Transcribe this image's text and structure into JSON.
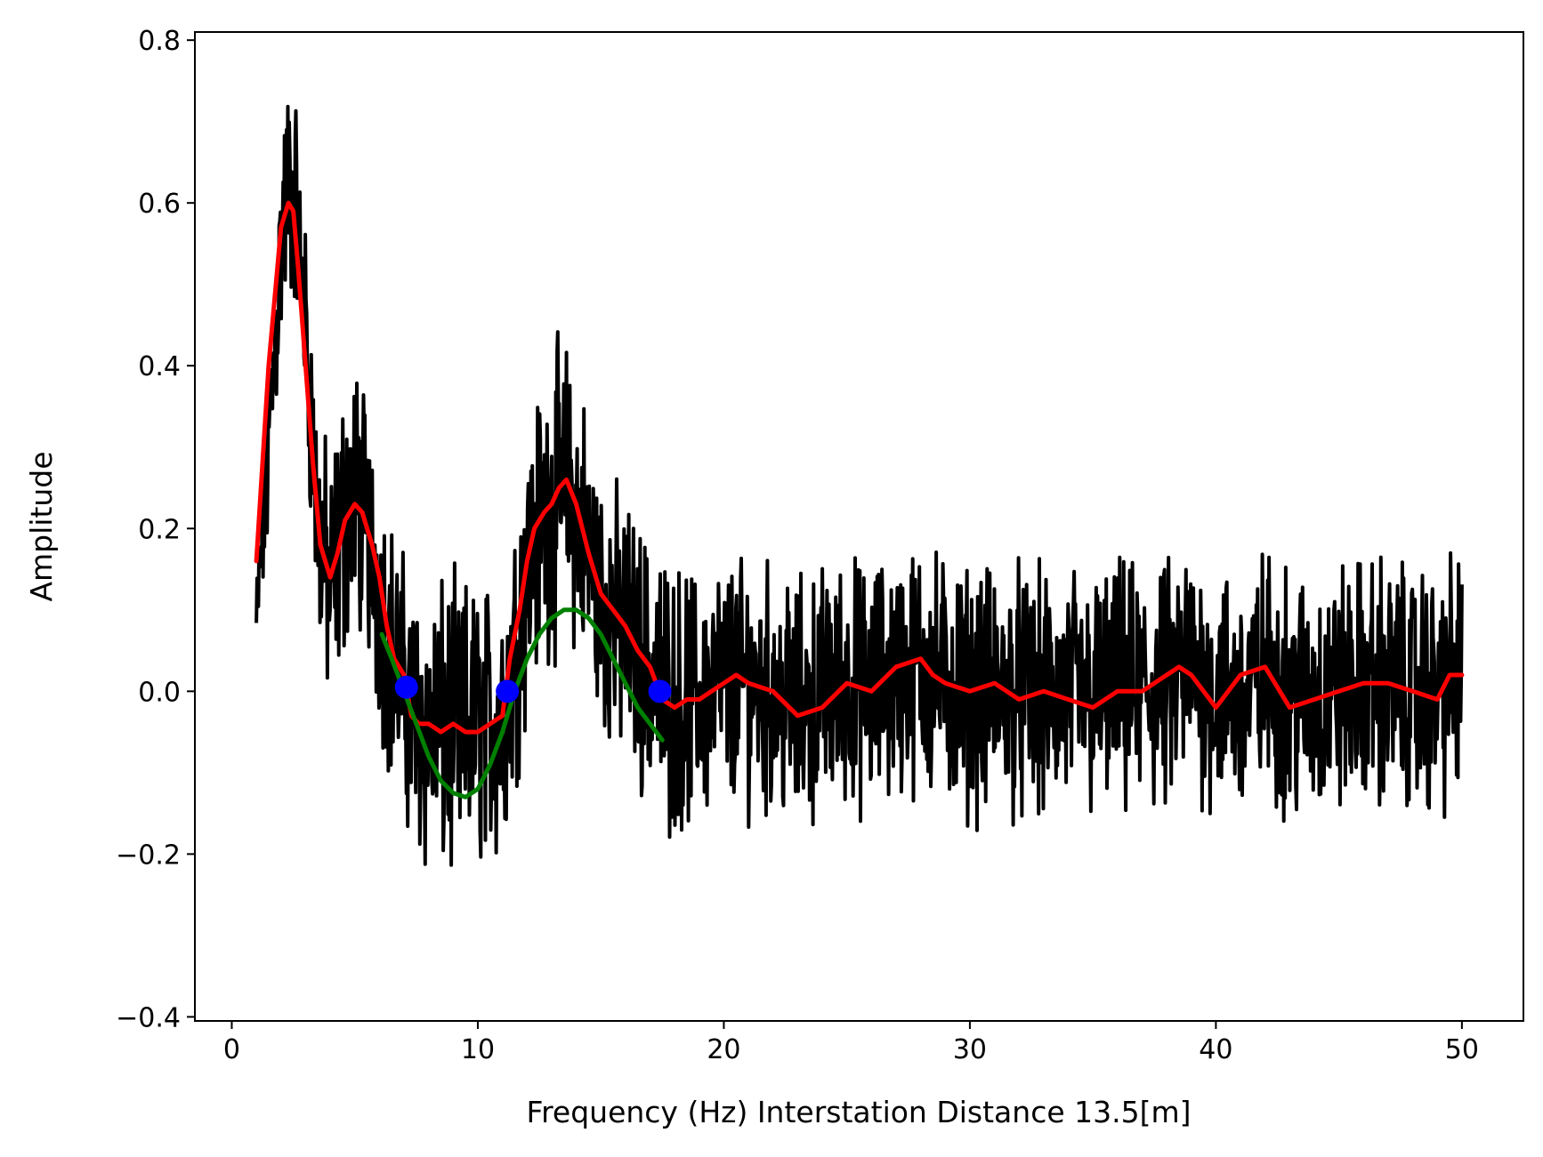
{
  "chart_data": {
    "type": "line",
    "title": "",
    "xlabel": "Frequency (Hz)  Interstation Distance 13.5[m]",
    "ylabel": "Amplitude",
    "xlim": [
      -1.5,
      52.5
    ],
    "ylim": [
      -0.405,
      0.81
    ],
    "x_ticks": [
      0,
      10,
      20,
      30,
      40,
      50
    ],
    "x_tick_labels": [
      "0",
      "10",
      "20",
      "30",
      "40",
      "50"
    ],
    "y_ticks": [
      -0.4,
      -0.2,
      0.0,
      0.2,
      0.4,
      0.6,
      0.8
    ],
    "y_tick_labels": [
      "−0.4",
      "−0.2",
      "0.0",
      "0.2",
      "0.4",
      "0.6",
      "0.8"
    ],
    "grid": false,
    "legend": "none",
    "series": [
      {
        "role": "raw-spectrum",
        "color": "#000000",
        "style": "noisy",
        "x": [
          1.0,
          1.5,
          2.0,
          2.3,
          2.6,
          3.0,
          3.5,
          4.0,
          4.5,
          5.0,
          5.5,
          6.0,
          6.5,
          7.0,
          7.5,
          8.0,
          8.5,
          9.0,
          9.5,
          10.0,
          10.5,
          11.0,
          11.5,
          12.0,
          12.5,
          13.0,
          13.5,
          14.0,
          14.5,
          15.0,
          15.5,
          16.0,
          16.5,
          17.0,
          17.5,
          18.0,
          19.0,
          20.0,
          21.0,
          22.0,
          23.0,
          24.0,
          25.0,
          26.0,
          27.0,
          28.0,
          29.0,
          30.0,
          31.0,
          32.0,
          33.0,
          34.0,
          35.0,
          36.0,
          37.0,
          38.0,
          39.0,
          40.0,
          41.0,
          42.0,
          43.0,
          44.0,
          45.0,
          46.0,
          47.0,
          48.0,
          49.0,
          50.0
        ],
        "trend": [
          0.08,
          0.3,
          0.55,
          0.62,
          0.6,
          0.45,
          0.2,
          0.12,
          0.2,
          0.25,
          0.2,
          0.12,
          0.05,
          0.0,
          -0.04,
          -0.05,
          -0.05,
          -0.05,
          -0.05,
          -0.04,
          -0.04,
          -0.03,
          0.05,
          0.15,
          0.2,
          0.23,
          0.25,
          0.22,
          0.17,
          0.12,
          0.09,
          0.07,
          0.05,
          0.02,
          0.0,
          -0.01,
          -0.01,
          0.01,
          0.01,
          0.0,
          -0.02,
          0.0,
          0.01,
          0.0,
          0.02,
          0.03,
          0.01,
          0.0,
          0.0,
          0.0,
          -0.01,
          0.0,
          -0.01,
          0.0,
          0.0,
          0.0,
          0.03,
          0.0,
          -0.01,
          0.02,
          0.0,
          -0.01,
          0.0,
          0.01,
          0.01,
          0.0,
          0.0,
          0.02
        ],
        "spread": [
          0.07,
          0.12,
          0.14,
          0.14,
          0.13,
          0.12,
          0.15,
          0.16,
          0.17,
          0.16,
          0.15,
          0.16,
          0.16,
          0.16,
          0.17,
          0.17,
          0.18,
          0.18,
          0.18,
          0.17,
          0.17,
          0.17,
          0.17,
          0.17,
          0.17,
          0.18,
          0.18,
          0.17,
          0.17,
          0.16,
          0.16,
          0.16,
          0.16,
          0.16,
          0.16,
          0.16,
          0.15,
          0.15,
          0.15,
          0.15,
          0.15,
          0.15,
          0.15,
          0.15,
          0.15,
          0.15,
          0.15,
          0.15,
          0.15,
          0.15,
          0.15,
          0.15,
          0.15,
          0.15,
          0.15,
          0.15,
          0.15,
          0.15,
          0.15,
          0.15,
          0.15,
          0.15,
          0.15,
          0.15,
          0.15,
          0.15,
          0.15,
          0.15
        ]
      },
      {
        "role": "smoothed-spectrum",
        "color": "#ff0000",
        "x": [
          1.0,
          1.5,
          2.0,
          2.3,
          2.5,
          2.7,
          3.0,
          3.3,
          3.6,
          4.0,
          4.3,
          4.6,
          5.0,
          5.3,
          5.7,
          6.0,
          6.3,
          6.6,
          7.0,
          7.3,
          7.6,
          8.0,
          8.5,
          9.0,
          9.5,
          10.0,
          10.5,
          11.0,
          11.3,
          11.7,
          12.0,
          12.3,
          12.7,
          13.0,
          13.3,
          13.6,
          14.0,
          14.5,
          15.0,
          15.5,
          16.0,
          16.5,
          17.0,
          17.5,
          18.0,
          18.5,
          19.0,
          19.5,
          20.0,
          20.5,
          21.0,
          22.0,
          23.0,
          24.0,
          25.0,
          26.0,
          27.0,
          28.0,
          28.5,
          29.0,
          30.0,
          31.0,
          32.0,
          33.0,
          34.0,
          35.0,
          36.0,
          37.0,
          38.0,
          38.5,
          39.0,
          40.0,
          41.0,
          42.0,
          43.0,
          44.0,
          45.0,
          46.0,
          47.0,
          48.0,
          49.0,
          49.5,
          50.0
        ],
        "y": [
          0.16,
          0.4,
          0.57,
          0.6,
          0.59,
          0.52,
          0.4,
          0.28,
          0.18,
          0.14,
          0.17,
          0.21,
          0.23,
          0.22,
          0.18,
          0.14,
          0.08,
          0.04,
          0.02,
          -0.03,
          -0.04,
          -0.04,
          -0.05,
          -0.04,
          -0.05,
          -0.05,
          -0.04,
          -0.03,
          0.04,
          0.1,
          0.16,
          0.2,
          0.22,
          0.23,
          0.25,
          0.26,
          0.23,
          0.17,
          0.12,
          0.1,
          0.08,
          0.05,
          0.03,
          -0.01,
          -0.02,
          -0.01,
          -0.01,
          0.0,
          0.01,
          0.02,
          0.01,
          0.0,
          -0.03,
          -0.02,
          0.01,
          0.0,
          0.03,
          0.04,
          0.02,
          0.01,
          0.0,
          0.01,
          -0.01,
          0.0,
          -0.01,
          -0.02,
          0.0,
          0.0,
          0.02,
          0.03,
          0.02,
          -0.02,
          0.02,
          0.03,
          -0.02,
          -0.01,
          0.0,
          0.01,
          0.01,
          0.0,
          -0.01,
          0.02,
          0.02
        ]
      },
      {
        "role": "fitted-bessel",
        "color": "#008000",
        "x": [
          6.1,
          6.5,
          7.0,
          7.5,
          8.0,
          8.5,
          9.0,
          9.5,
          10.0,
          10.5,
          11.0,
          11.5,
          12.0,
          12.5,
          13.0,
          13.5,
          14.0,
          14.5,
          15.0,
          15.5,
          16.0,
          16.5,
          17.0,
          17.5
        ],
        "y": [
          0.07,
          0.04,
          0.0,
          -0.04,
          -0.08,
          -0.11,
          -0.125,
          -0.13,
          -0.12,
          -0.09,
          -0.05,
          0.0,
          0.04,
          0.07,
          0.09,
          0.1,
          0.1,
          0.09,
          0.07,
          0.04,
          0.01,
          -0.02,
          -0.04,
          -0.06
        ]
      },
      {
        "role": "zero-crossings",
        "color": "#0000ff",
        "marker": "circle",
        "x": [
          7.1,
          11.2,
          17.4
        ],
        "y": [
          0.005,
          0.0,
          0.0
        ]
      }
    ]
  }
}
